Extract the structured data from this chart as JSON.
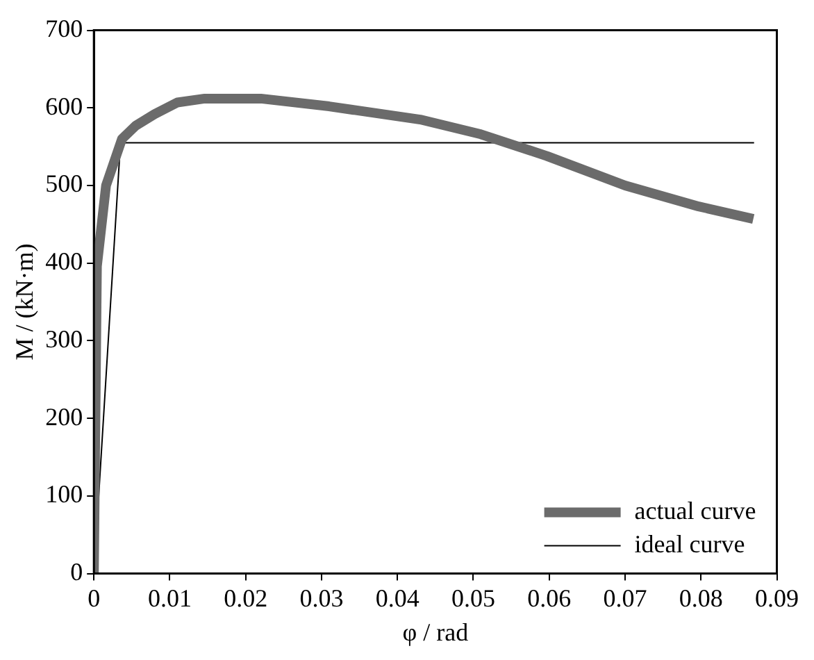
{
  "chart_data": {
    "type": "line",
    "xlabel": "φ / rad",
    "ylabel": "M / (kN·m)",
    "xlim": [
      0,
      0.09
    ],
    "xticks": [
      {
        "value": 0,
        "label": "0"
      },
      0.01,
      0.02,
      0.03,
      0.04,
      0.05,
      0.06,
      0.07,
      0.08,
      0.09
    ],
    "ylim": [
      0,
      700
    ],
    "yticks": [
      0,
      100,
      200,
      300,
      400,
      500,
      600,
      700
    ],
    "grid": false,
    "legend": "bottom right",
    "marker": "none",
    "line_style": "solid",
    "series": [
      {
        "name": "actual curve",
        "color": "#6b6b6b",
        "x": [
          0,
          0.0004,
          0.0016,
          0.0037,
          0.0055,
          0.008,
          0.011,
          0.0146,
          0.022,
          0.031,
          0.043,
          0.051,
          0.0597,
          0.07,
          0.0797,
          0.0869
        ],
        "values": [
          0,
          396,
          500,
          560,
          577,
          592,
          607,
          612,
          612,
          602,
          585,
          566,
          538,
          500,
          473,
          457
        ]
      },
      {
        "name": "ideal curve",
        "color": "#000000",
        "x": [
          0,
          0.0035,
          0.087
        ],
        "values": [
          0,
          555,
          555
        ]
      }
    ]
  }
}
